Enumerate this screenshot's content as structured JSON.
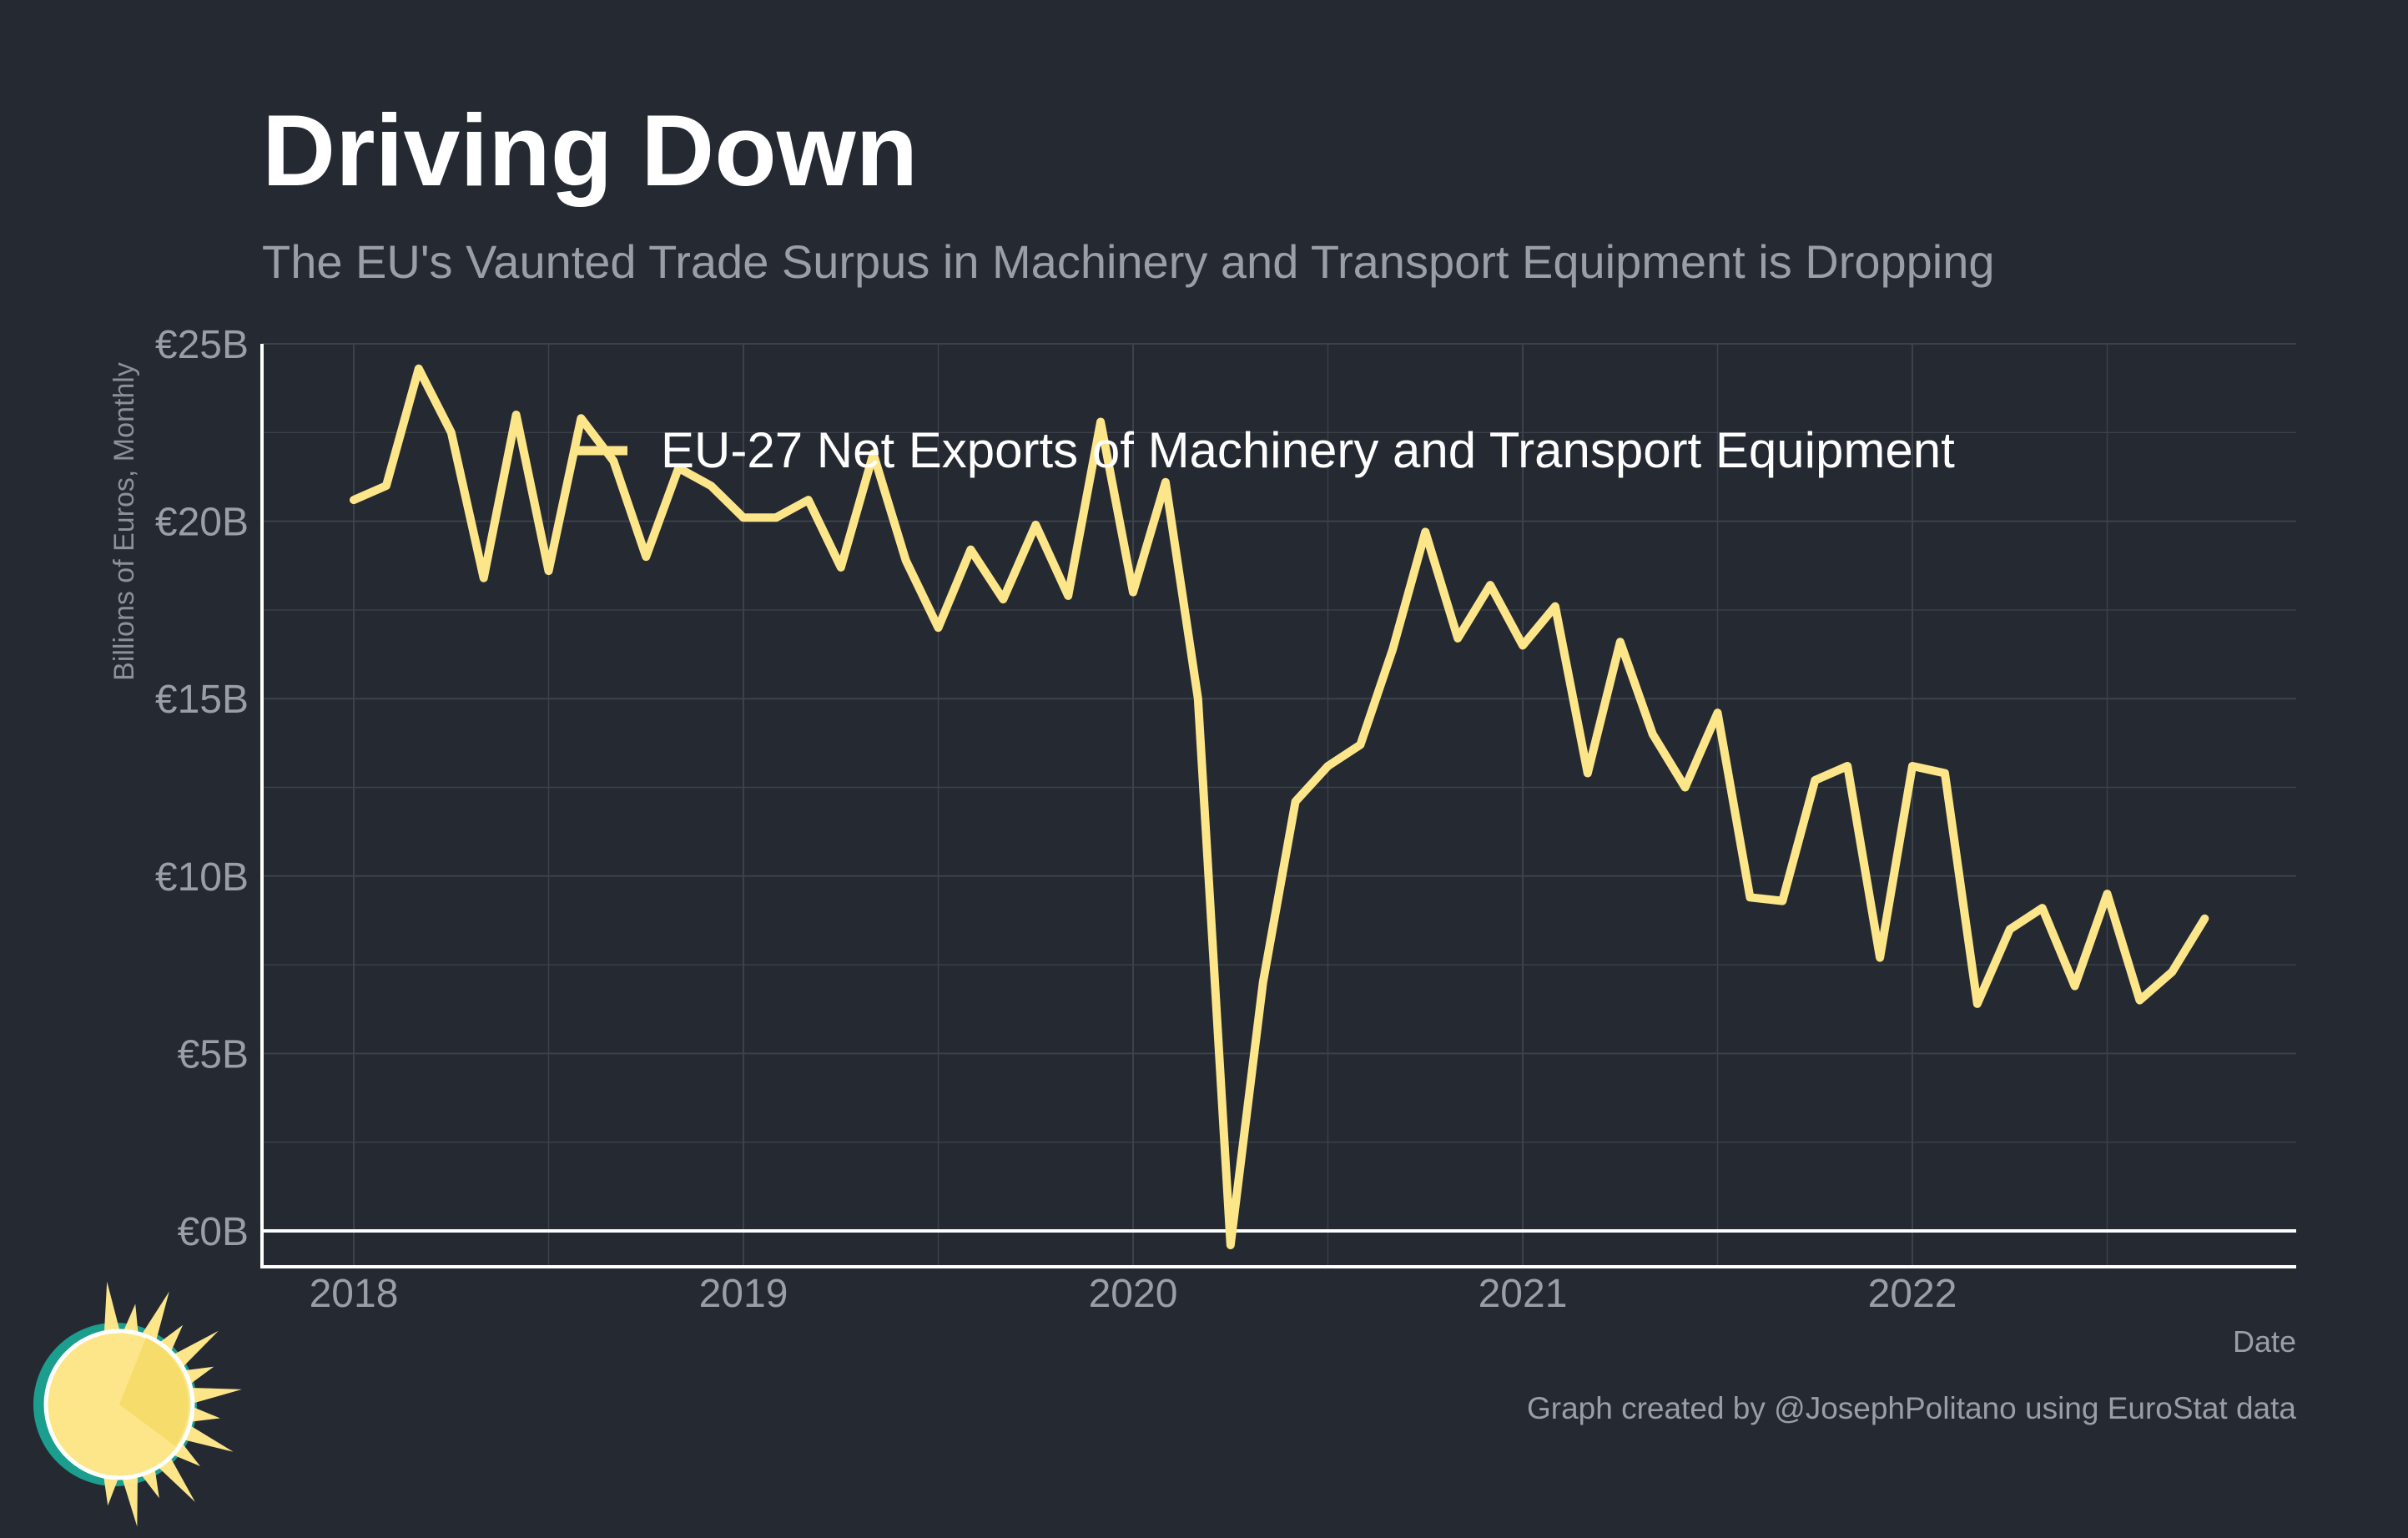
{
  "chart_data": {
    "type": "line",
    "title": "Driving Down",
    "subtitle": "The EU's Vaunted Trade Surpus in Machinery and Transport Equipment is Dropping",
    "xlabel": "Date",
    "ylabel": "Billions of Euros, Monthly",
    "caption": "Graph created by @JosephPolitano using EuroStat data",
    "ylim": [
      0,
      25
    ],
    "y_ticks": [
      "€0B",
      "€5B",
      "€10B",
      "€15B",
      "€20B",
      "€25B"
    ],
    "x_ticks": [
      "2018",
      "2019",
      "2020",
      "2021",
      "2022"
    ],
    "grid": true,
    "legend_position": "top",
    "series": [
      {
        "name": "EU-27 Net Exports of Machinery and Transport Equipment",
        "color": "#fde68a",
        "points": [
          {
            "x": "2018-01",
            "y": 20.6
          },
          {
            "x": "2018-02",
            "y": 21.0
          },
          {
            "x": "2018-03",
            "y": 24.3
          },
          {
            "x": "2018-04",
            "y": 22.5
          },
          {
            "x": "2018-05",
            "y": 18.4
          },
          {
            "x": "2018-06",
            "y": 23.0
          },
          {
            "x": "2018-07",
            "y": 18.6
          },
          {
            "x": "2018-08",
            "y": 22.9
          },
          {
            "x": "2018-09",
            "y": 21.7
          },
          {
            "x": "2018-10",
            "y": 19.0
          },
          {
            "x": "2018-11",
            "y": 21.5
          },
          {
            "x": "2018-12",
            "y": 21.0
          },
          {
            "x": "2019-01",
            "y": 20.1
          },
          {
            "x": "2019-02",
            "y": 20.1
          },
          {
            "x": "2019-03",
            "y": 20.6
          },
          {
            "x": "2019-04",
            "y": 18.7
          },
          {
            "x": "2019-05",
            "y": 21.9
          },
          {
            "x": "2019-06",
            "y": 18.9
          },
          {
            "x": "2019-07",
            "y": 17.0
          },
          {
            "x": "2019-08",
            "y": 19.2
          },
          {
            "x": "2019-09",
            "y": 17.8
          },
          {
            "x": "2019-10",
            "y": 19.9
          },
          {
            "x": "2019-11",
            "y": 17.9
          },
          {
            "x": "2019-12",
            "y": 22.8
          },
          {
            "x": "2020-01",
            "y": 18.0
          },
          {
            "x": "2020-02",
            "y": 21.1
          },
          {
            "x": "2020-03",
            "y": 15.0
          },
          {
            "x": "2020-04",
            "y": -0.4
          },
          {
            "x": "2020-05",
            "y": 7.0
          },
          {
            "x": "2020-06",
            "y": 12.1
          },
          {
            "x": "2020-07",
            "y": 13.1
          },
          {
            "x": "2020-08",
            "y": 13.7
          },
          {
            "x": "2020-09",
            "y": 16.4
          },
          {
            "x": "2020-10",
            "y": 19.7
          },
          {
            "x": "2020-11",
            "y": 16.7
          },
          {
            "x": "2020-12",
            "y": 18.2
          },
          {
            "x": "2021-01",
            "y": 16.5
          },
          {
            "x": "2021-02",
            "y": 17.6
          },
          {
            "x": "2021-03",
            "y": 12.9
          },
          {
            "x": "2021-04",
            "y": 16.6
          },
          {
            "x": "2021-05",
            "y": 14.0
          },
          {
            "x": "2021-06",
            "y": 12.5
          },
          {
            "x": "2021-07",
            "y": 14.6
          },
          {
            "x": "2021-08",
            "y": 9.4
          },
          {
            "x": "2021-09",
            "y": 9.3
          },
          {
            "x": "2021-10",
            "y": 12.7
          },
          {
            "x": "2021-11",
            "y": 13.1
          },
          {
            "x": "2021-12",
            "y": 7.7
          },
          {
            "x": "2022-01",
            "y": 13.1
          },
          {
            "x": "2022-02",
            "y": 12.9
          },
          {
            "x": "2022-03",
            "y": 6.4
          },
          {
            "x": "2022-04",
            "y": 8.5
          },
          {
            "x": "2022-05",
            "y": 9.1
          },
          {
            "x": "2022-06",
            "y": 6.9
          },
          {
            "x": "2022-07",
            "y": 9.5
          },
          {
            "x": "2022-08",
            "y": 6.5
          },
          {
            "x": "2022-09",
            "y": 7.3
          },
          {
            "x": "2022-10",
            "y": 8.8
          }
        ]
      }
    ]
  },
  "colors": {
    "background": "#252a32",
    "grid": "#3c414a",
    "axis": "#ffffff",
    "line": "#fde68a",
    "logo_teal": "#1b9e8e",
    "logo_sun": "#fde68a",
    "logo_sun_dark": "#f6dc6a"
  },
  "icons": {
    "logo": "sun-logo-icon"
  }
}
